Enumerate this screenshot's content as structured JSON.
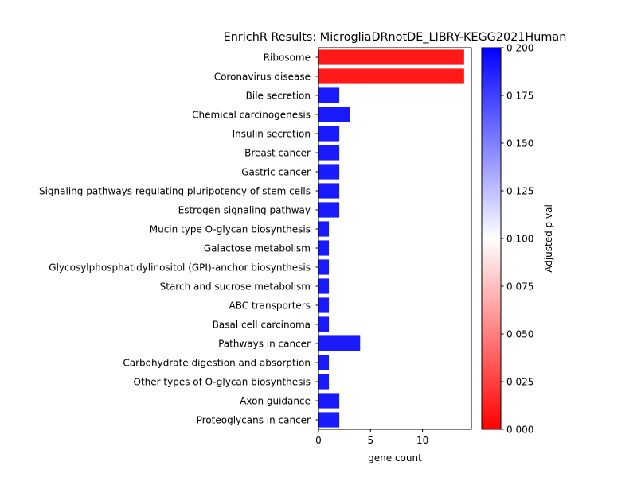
{
  "chart_data": {
    "type": "bar",
    "orientation": "horizontal",
    "title": "EnrichR Results: MicrogliaDRnotDE_LIBRY-KEGG2021Human",
    "xlabel": "gene count",
    "ylabel": "",
    "xlim": [
      0,
      14.7
    ],
    "xticks": [
      0,
      5,
      10
    ],
    "grid": false,
    "categories": [
      "Ribosome",
      "Coronavirus disease",
      "Bile secretion",
      "Chemical carcinogenesis",
      "Insulin secretion",
      "Breast cancer",
      "Gastric cancer",
      "Signaling pathways regulating pluripotency of stem cells",
      "Estrogen signaling pathway",
      "Mucin type O-glycan biosynthesis",
      "Galactose metabolism",
      "Glycosylphosphatidylinositol (GPI)-anchor biosynthesis",
      "Starch and sucrose metabolism",
      "ABC transporters",
      "Basal cell carcinoma",
      "Pathways in cancer",
      "Carbohydrate digestion and absorption",
      "Other types of O-glycan biosynthesis",
      "Axon guidance",
      "Proteoglycans in cancer"
    ],
    "values": [
      14,
      14,
      2,
      3,
      2,
      2,
      2,
      2,
      2,
      1,
      1,
      1,
      1,
      1,
      1,
      4,
      1,
      1,
      2,
      2
    ],
    "adjusted_p": [
      0.01,
      0.01,
      0.19,
      0.19,
      0.19,
      0.19,
      0.19,
      0.19,
      0.19,
      0.19,
      0.19,
      0.19,
      0.19,
      0.19,
      0.19,
      0.19,
      0.19,
      0.19,
      0.19,
      0.19
    ],
    "colorbar": {
      "label": "Adjusted p val",
      "range": [
        0,
        0.2
      ],
      "ticks": [
        "0.000",
        "0.025",
        "0.050",
        "0.075",
        "0.100",
        "0.125",
        "0.150",
        "0.175",
        "0.200"
      ],
      "colors": [
        "#ff0000",
        "#ffffff",
        "#0000ff"
      ]
    }
  }
}
